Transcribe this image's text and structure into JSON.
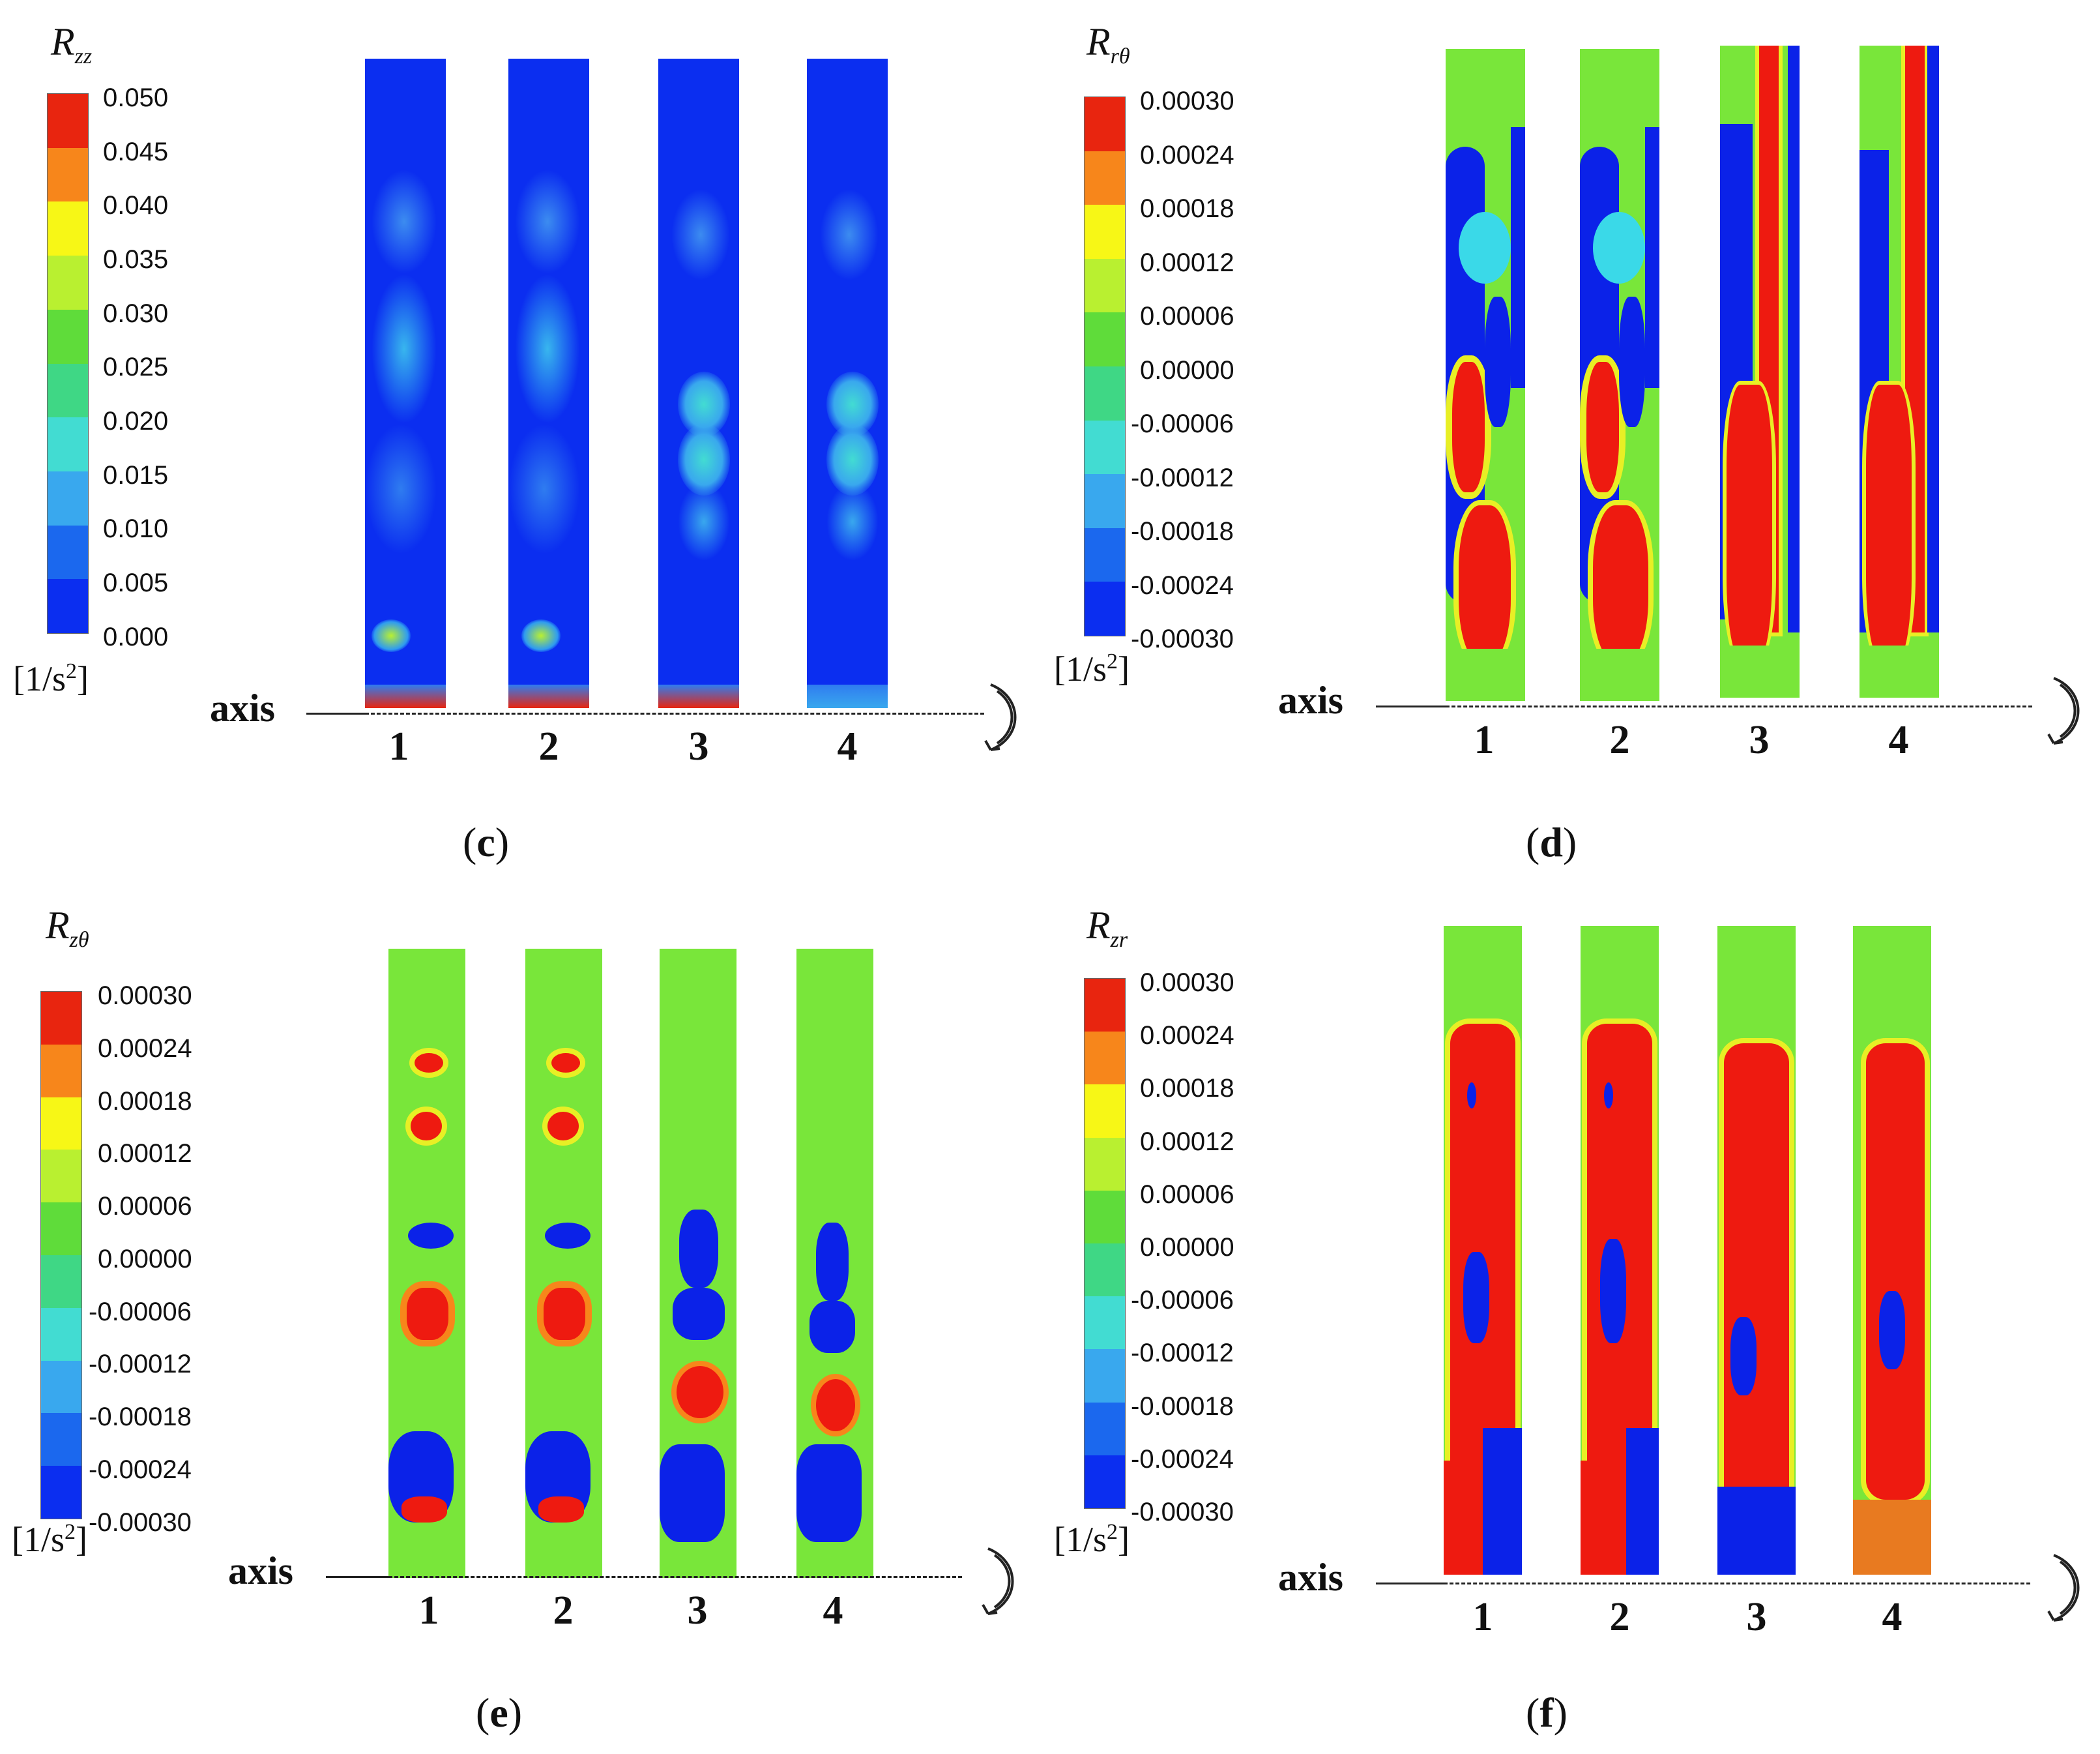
{
  "panels": [
    {
      "id": "c",
      "symbol_base": "R",
      "symbol_sub": "zz",
      "ticks": [
        "0.050",
        "0.045",
        "0.040",
        "0.035",
        "0.030",
        "0.025",
        "0.020",
        "0.015",
        "0.010",
        "0.005",
        "0.000"
      ],
      "units_base": "[1/s",
      "units_sup": "2",
      "units_end": "]",
      "axis_label": "axis",
      "columns": [
        "1",
        "2",
        "3",
        "4"
      ],
      "caption": "c"
    },
    {
      "id": "d",
      "symbol_base": "R",
      "symbol_sub": "rθ",
      "ticks": [
        "0.00030",
        "0.00024",
        "0.00018",
        "0.00012",
        "0.00006",
        "0.00000",
        "-0.00006",
        "-0.00012",
        "-0.00018",
        "-0.00024",
        "-0.00030"
      ],
      "units_base": "[1/s",
      "units_sup": "2",
      "units_end": "]",
      "axis_label": "axis",
      "columns": [
        "1",
        "2",
        "3",
        "4"
      ],
      "caption": "d"
    },
    {
      "id": "e",
      "symbol_base": "R",
      "symbol_sub": "zθ",
      "ticks": [
        "0.00030",
        "0.00024",
        "0.00018",
        "0.00012",
        "0.00006",
        "0.00000",
        "-0.00006",
        "-0.00012",
        "-0.00018",
        "-0.00024",
        "-0.00030"
      ],
      "units_base": "[1/s",
      "units_sup": "2",
      "units_end": "]",
      "axis_label": "axis",
      "columns": [
        "1",
        "2",
        "3",
        "4"
      ],
      "caption": "e"
    },
    {
      "id": "f",
      "symbol_base": "R",
      "symbol_sub": "zr",
      "ticks": [
        "0.00030",
        "0.00024",
        "0.00018",
        "0.00012",
        "0.00006",
        "0.00000",
        "-0.00006",
        "-0.00012",
        "-0.00018",
        "-0.00024",
        "-0.00030"
      ],
      "units_base": "[1/s",
      "units_sup": "2",
      "units_end": "]",
      "axis_label": "axis",
      "columns": [
        "1",
        "2",
        "3",
        "4"
      ],
      "caption": "f"
    }
  ],
  "colors": {
    "scale": [
      "#e8250f",
      "#f7861b",
      "#f8c21a",
      "#f7f716",
      "#b9f030",
      "#5fdc3a",
      "#3fd785",
      "#42dcd2",
      "#39a8ee",
      "#1b68ee",
      "#0b2ef0"
    ],
    "red": "#ee1a10",
    "green": "#79e63a",
    "blue": "#0b22e8",
    "cyan": "#3ad9e8",
    "yellow": "#e8ef25"
  }
}
